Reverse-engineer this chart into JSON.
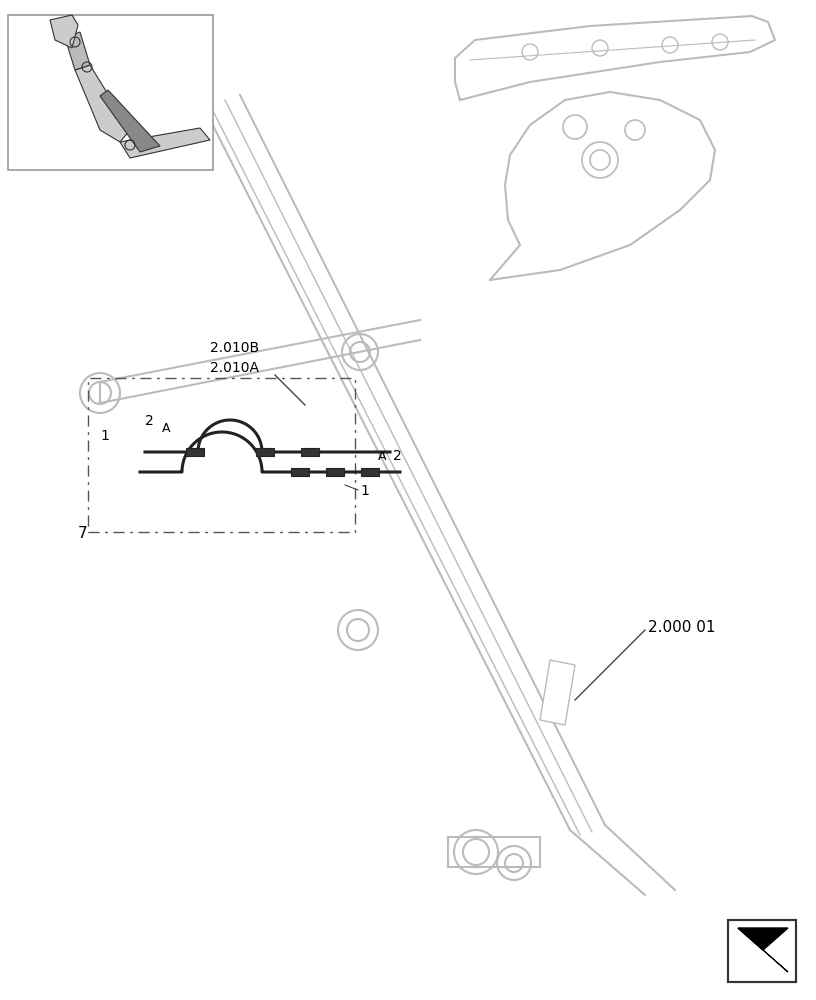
{
  "bg_color": "#ffffff",
  "line_color": "#bbbbbb",
  "dark_line": "#555555",
  "text_color": "#000000",
  "label_200001": "2.000 01",
  "label_7": "7",
  "label_1a": "1",
  "label_1b": "1",
  "label_2a": "2",
  "label_2b": "2",
  "label_Aa": "A",
  "label_Ab": "A",
  "label_2010A": "2.010A",
  "label_2010B": "2.010B",
  "pin_circles_thumb": [
    [
      130,
      855,
      5
    ],
    [
      87,
      933,
      5
    ],
    [
      75,
      958,
      5
    ]
  ]
}
